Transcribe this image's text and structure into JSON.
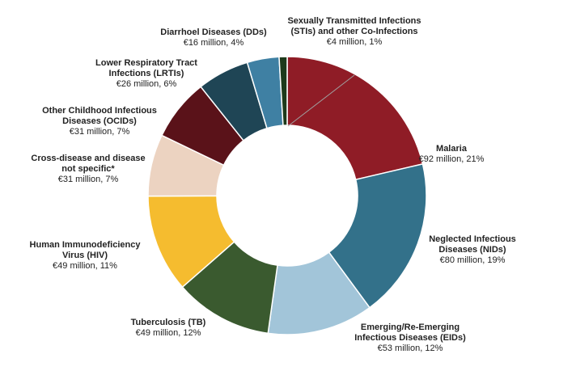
{
  "chart_data": {
    "type": "pie",
    "subtype": "donut",
    "title": "",
    "unit": "€ million",
    "start": "top, clockwise",
    "slices": [
      {
        "name": "Malaria",
        "label": "Malaria",
        "value": 92,
        "percent": 21,
        "value_text": "€92 million,  21%",
        "color": "#8f1c26"
      },
      {
        "name": "NIDs",
        "label": "Neglected Infectious\nDiseases (NIDs)",
        "value": 80,
        "percent": 19,
        "value_text": "€80 million,  19%",
        "color": "#33718a"
      },
      {
        "name": "EIDs",
        "label": "Emerging/Re-Emerging\nInfectious Diseases (EIDs)",
        "value": 53,
        "percent": 12,
        "value_text": "€53 million,  12%",
        "color": "#a2c5d9"
      },
      {
        "name": "TB",
        "label": "Tuberculosis (TB)",
        "value": 49,
        "percent": 12,
        "value_text": "€49 million,  12%",
        "color": "#3a5a2f"
      },
      {
        "name": "HIV",
        "label": "Human Immunodeficiency\nVirus (HIV)",
        "value": 49,
        "percent": 11,
        "value_text": "€49 million,  11%",
        "color": "#f5bc2f"
      },
      {
        "name": "Cross-disease",
        "label": "Cross-disease and disease\nnot specific*",
        "value": 31,
        "percent": 7,
        "value_text": "€31  million,  7%",
        "color": "#ecd3c1"
      },
      {
        "name": "OCIDs",
        "label": "Other Childhood Infectious\nDiseases (OCIDs)",
        "value": 31,
        "percent": 7,
        "value_text": "€31 million,  7%",
        "color": "#5a1219"
      },
      {
        "name": "LRTIs",
        "label": "Lower Respiratory Tract\nInfections (LRTIs)",
        "value": 26,
        "percent": 6,
        "value_text": "€26 million,  6%",
        "color": "#1f4555"
      },
      {
        "name": "DDs",
        "label": "Diarrhoel Diseases (DDs)",
        "value": 16,
        "percent": 4,
        "value_text": "€16 million,  4%",
        "color": "#3f80a3"
      },
      {
        "name": "STIs",
        "label": "Sexually Transmitted Infections\n(STIs) and other Co-Infections",
        "value": 4,
        "percent": 1,
        "value_text": "€4  million,  1%",
        "color": "#1d3a1b"
      }
    ]
  }
}
